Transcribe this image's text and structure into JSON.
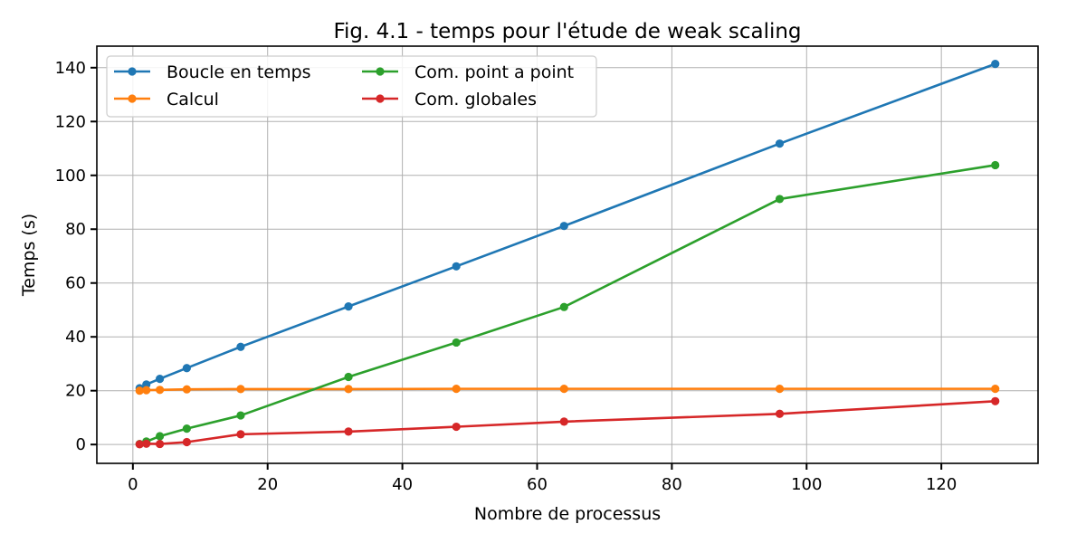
{
  "chart_data": {
    "type": "line",
    "title": "Fig. 4.1 - temps pour l'étude de weak scaling",
    "xlabel": "Nombre de processus",
    "ylabel": "Temps (s)",
    "xlim": [
      -5.35,
      134.35
    ],
    "ylim": [
      -7,
      148
    ],
    "xticks": [
      0,
      20,
      40,
      60,
      80,
      100,
      120
    ],
    "yticks": [
      0,
      20,
      40,
      60,
      80,
      100,
      120,
      140
    ],
    "grid": true,
    "legend_position": "top-left",
    "legend_columns": 2,
    "x": [
      1,
      2,
      4,
      8,
      16,
      32,
      48,
      64,
      96,
      128
    ],
    "series": [
      {
        "name": "Boucle en temps",
        "color": "#1f77b4",
        "values": [
          20.9,
          22.3,
          24.4,
          28.4,
          36.3,
          51.3,
          66.2,
          81.2,
          111.8,
          141.4
        ]
      },
      {
        "name": "Calcul",
        "color": "#ff7f0e",
        "values": [
          20.0,
          20.2,
          20.3,
          20.5,
          20.6,
          20.6,
          20.7,
          20.7,
          20.7,
          20.7
        ]
      },
      {
        "name": "Com. point a point",
        "color": "#2ca02c",
        "values": [
          0.2,
          1.1,
          3.1,
          5.9,
          10.8,
          25.1,
          37.9,
          51.1,
          91.2,
          103.8
        ]
      },
      {
        "name": "Com. globales",
        "color": "#d62728",
        "values": [
          0.1,
          0.3,
          0.2,
          0.9,
          3.8,
          4.8,
          6.6,
          8.5,
          11.4,
          16.1
        ]
      }
    ]
  }
}
